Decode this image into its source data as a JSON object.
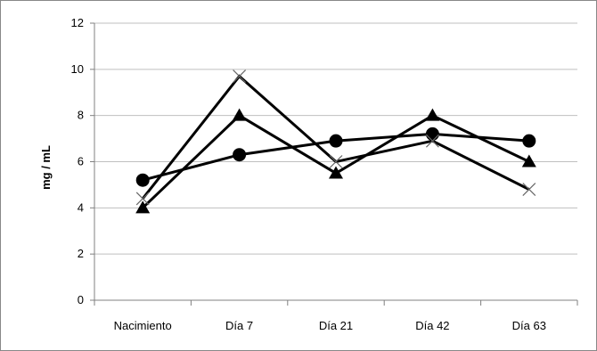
{
  "chart_data": {
    "type": "line",
    "title": "",
    "xlabel": "",
    "ylabel": "mg / mL",
    "categories": [
      "Nacimiento",
      "Día 7",
      "Día 21",
      "Día 42",
      "Día 63"
    ],
    "ylim": [
      0,
      12
    ],
    "yticks": [
      "0",
      "2",
      "4",
      "6",
      "8",
      "10",
      "12"
    ],
    "grid": true,
    "legend": "none",
    "series": [
      {
        "marker": "circle",
        "color": "#000000",
        "values": [
          5.2,
          6.3,
          6.9,
          7.2,
          6.9
        ]
      },
      {
        "marker": "triangle",
        "color": "#000000",
        "values": [
          4.0,
          8.0,
          5.5,
          8.0,
          6.0
        ]
      },
      {
        "marker": "x",
        "color": "#000000",
        "values": [
          4.4,
          9.7,
          6.0,
          6.9,
          4.8
        ]
      }
    ]
  }
}
